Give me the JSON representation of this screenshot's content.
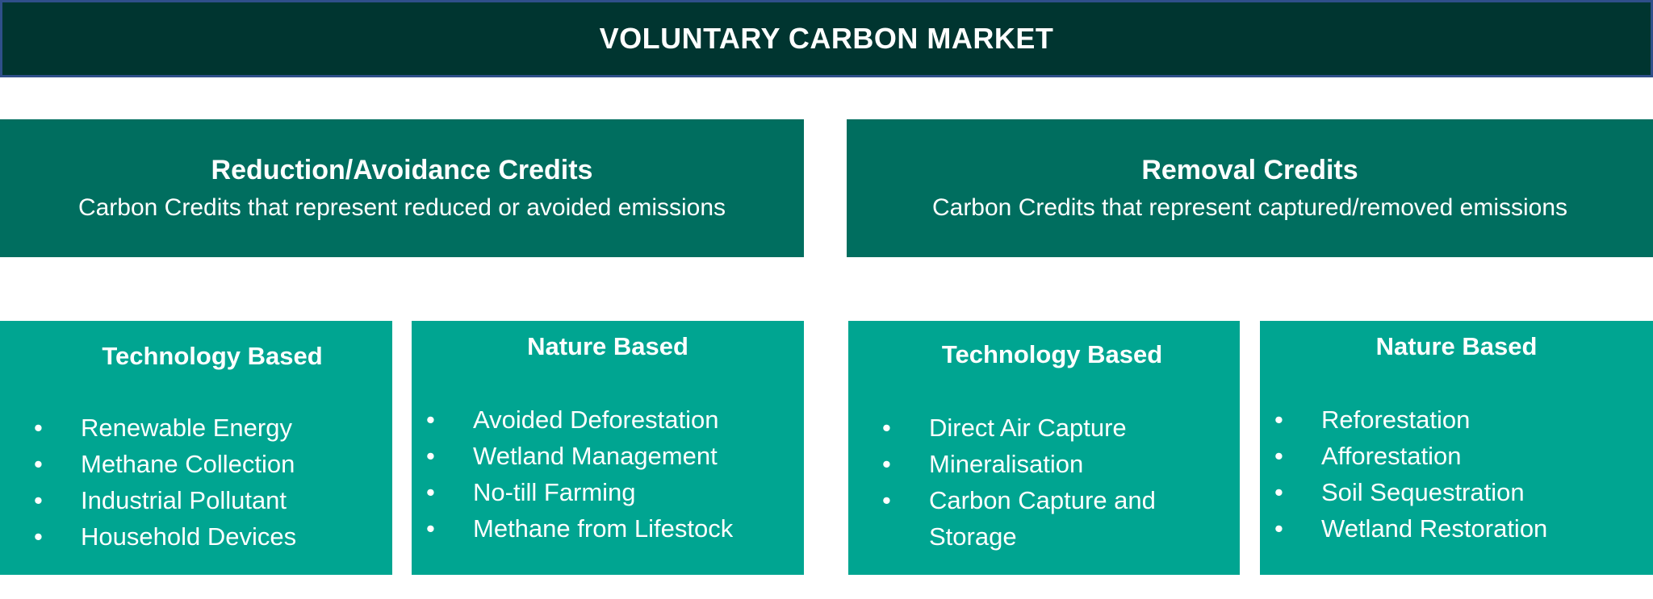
{
  "title": "VOLUNTARY CARBON MARKET",
  "colors": {
    "title_bg": "#003530",
    "title_border": "#2f4f8a",
    "category_bg": "#006e5f",
    "subcategory_bg": "#00a591",
    "text": "#ffffff"
  },
  "categories": [
    {
      "heading": "Reduction/Avoidance Credits",
      "description": "Carbon Credits that represent reduced or avoided emissions",
      "groups": [
        {
          "heading": "Technology Based",
          "items": [
            "Renewable Energy",
            "Methane Collection",
            "Industrial Pollutant",
            "Household Devices"
          ]
        },
        {
          "heading": "Nature Based",
          "items": [
            "Avoided Deforestation",
            "Wetland Management",
            "No-till Farming",
            "Methane from Lifestock"
          ]
        }
      ]
    },
    {
      "heading": "Removal Credits",
      "description": "Carbon Credits that represent captured/removed emissions",
      "groups": [
        {
          "heading": "Technology Based",
          "items": [
            "Direct Air Capture",
            "Mineralisation",
            "Carbon Capture and Storage"
          ]
        },
        {
          "heading": "Nature Based",
          "items": [
            "Reforestation",
            "Afforestation",
            "Soil Sequestration",
            "Wetland Restoration"
          ]
        }
      ]
    }
  ]
}
